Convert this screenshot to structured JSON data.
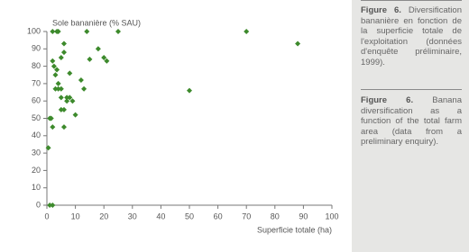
{
  "chart_data": {
    "type": "scatter",
    "y_label": "Sole bananière (% SAU)",
    "x_label": "Superficie totale (ha)",
    "color": "#3d8a2c",
    "xlim": [
      0,
      100
    ],
    "xticks": [
      0,
      10,
      20,
      30,
      40,
      50,
      60,
      70,
      80,
      90,
      100
    ],
    "ylim": [
      0,
      100
    ],
    "yticks": [
      0,
      10,
      20,
      30,
      40,
      50,
      60,
      70,
      80,
      90,
      100
    ],
    "x": [
      2,
      3.5,
      4,
      14,
      25,
      70,
      88,
      1,
      0.5,
      1.5,
      2,
      2.5,
      3,
      3.5,
      4,
      3,
      4,
      5,
      6,
      6,
      5,
      5,
      6,
      6,
      7,
      7,
      8,
      9,
      8,
      10,
      12,
      13,
      15,
      18,
      20,
      21,
      50,
      2,
      5,
      1,
      2
    ],
    "y": [
      100,
      100,
      100,
      100,
      100,
      100,
      93,
      50,
      33,
      50,
      45,
      80,
      75,
      78,
      70,
      67,
      67,
      67,
      93,
      88,
      62,
      55,
      55,
      45,
      62,
      60,
      62,
      60,
      76,
      52,
      72,
      67,
      84,
      90,
      85,
      83,
      66,
      83,
      85,
      0,
      0
    ]
  },
  "caption": {
    "fr_label": "Figure 6.",
    "fr_text": "Diversification bananière en fonction de la superficie totale de l'exploitation (données d'enquête préliminaire, 1999).",
    "en_label": "Figure 6.",
    "en_text": "Banana diversification as a function of the total farm area (data from a preliminary enquiry)."
  }
}
